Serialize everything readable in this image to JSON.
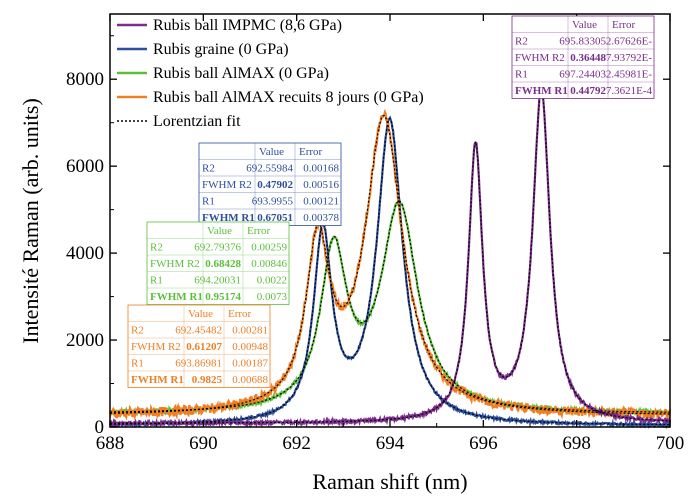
{
  "chart_data": {
    "type": "line",
    "xlabel": "Raman shift (nm)",
    "ylabel": "Intensité Raman (arb. units)",
    "xlim": [
      688,
      700
    ],
    "ylim": [
      0,
      9500
    ],
    "x_ticks": [
      "688",
      "690",
      "692",
      "694",
      "696",
      "698",
      "700"
    ],
    "y_ticks": [
      "0",
      "2000",
      "4000",
      "6000",
      "8000"
    ],
    "legend_position": "top-left",
    "series": [
      {
        "name": "Rubis ball IMPMC (8,6 GPa)",
        "color": "#7b2c8c",
        "style": "solid",
        "peaks": [
          {
            "center": 695.83305,
            "fwhm": 0.36448,
            "height": 6300
          },
          {
            "center": 697.24403,
            "fwhm": 0.44792,
            "height": 7600
          }
        ],
        "baseline": 80,
        "noise": 40
      },
      {
        "name": "Rubis graine (0 GPa)",
        "color": "#2c4f9e",
        "style": "solid",
        "peaks": [
          {
            "center": 692.55984,
            "fwhm": 0.47902,
            "height": 4300
          },
          {
            "center": 693.9955,
            "fwhm": 0.67051,
            "height": 6950
          }
        ],
        "baseline": 30,
        "noise": 30
      },
      {
        "name": "Rubis ball AlMAX (0 GPa)",
        "color": "#5cbf3a",
        "style": "solid",
        "peaks": [
          {
            "center": 692.79376,
            "fwhm": 0.68428,
            "height": 3600
          },
          {
            "center": 694.20031,
            "fwhm": 0.95174,
            "height": 4700
          }
        ],
        "baseline": 300,
        "noise": 40
      },
      {
        "name": "Rubis ball AlMAX recuits 8 jours (0 GPa)",
        "color": "#f07f24",
        "style": "solid",
        "peaks": [
          {
            "center": 692.45482,
            "fwhm": 0.61207,
            "height": 3700
          },
          {
            "center": 693.86981,
            "fwhm": 0.9825,
            "height": 6750
          }
        ],
        "baseline": 250,
        "noise": 110
      },
      {
        "name": "Lorentzian fit",
        "color": "#000000",
        "style": "dotted",
        "fit": true
      }
    ],
    "tables": [
      {
        "id": "impmc",
        "color": "#7b2c8c",
        "headers": [
          "",
          "Value",
          "Error"
        ],
        "rows": [
          {
            "label": "R2",
            "value": "695.83305",
            "error": "2.67626E-"
          },
          {
            "label": "FWHM R2",
            "value": "0.36448",
            "error": "7.93792E-"
          },
          {
            "label": "R1",
            "value": "697.24403",
            "error": "2.45981E-"
          },
          {
            "label": "FWHM R1",
            "value": "0.44792",
            "error": "7.3621E-4"
          }
        ]
      },
      {
        "id": "graine",
        "color": "#2c4f9e",
        "headers": [
          "",
          "Value",
          "Error"
        ],
        "rows": [
          {
            "label": "R2",
            "value": "692.55984",
            "error": "0.00168"
          },
          {
            "label": "FWHM R2",
            "value": "0.47902",
            "error": "0.00516"
          },
          {
            "label": "R1",
            "value": "693.9955",
            "error": "0.00121"
          },
          {
            "label": "FWHM R1",
            "value": "0.67051",
            "error": "0.00378"
          }
        ]
      },
      {
        "id": "almax",
        "color": "#5cbf3a",
        "headers": [
          "",
          "Value",
          "Error"
        ],
        "rows": [
          {
            "label": "R2",
            "value": "692.79376",
            "error": "0.00259"
          },
          {
            "label": "FWHM R2",
            "value": "0.68428",
            "error": "0.00846"
          },
          {
            "label": "R1",
            "value": "694.20031",
            "error": "0.0022"
          },
          {
            "label": "FWHM R1",
            "value": "0.95174",
            "error": "0.0073"
          }
        ]
      },
      {
        "id": "recuits",
        "color": "#f07f24",
        "headers": [
          "",
          "Value",
          "Error"
        ],
        "rows": [
          {
            "label": "R2",
            "value": "692.45482",
            "error": "0.00281"
          },
          {
            "label": "FWHM R2",
            "value": "0.61207",
            "error": "0.00948"
          },
          {
            "label": "R1",
            "value": "693.86981",
            "error": "0.00187"
          },
          {
            "label": "FWHM R1",
            "value": "0.9825",
            "error": "0.00688"
          }
        ]
      }
    ]
  }
}
